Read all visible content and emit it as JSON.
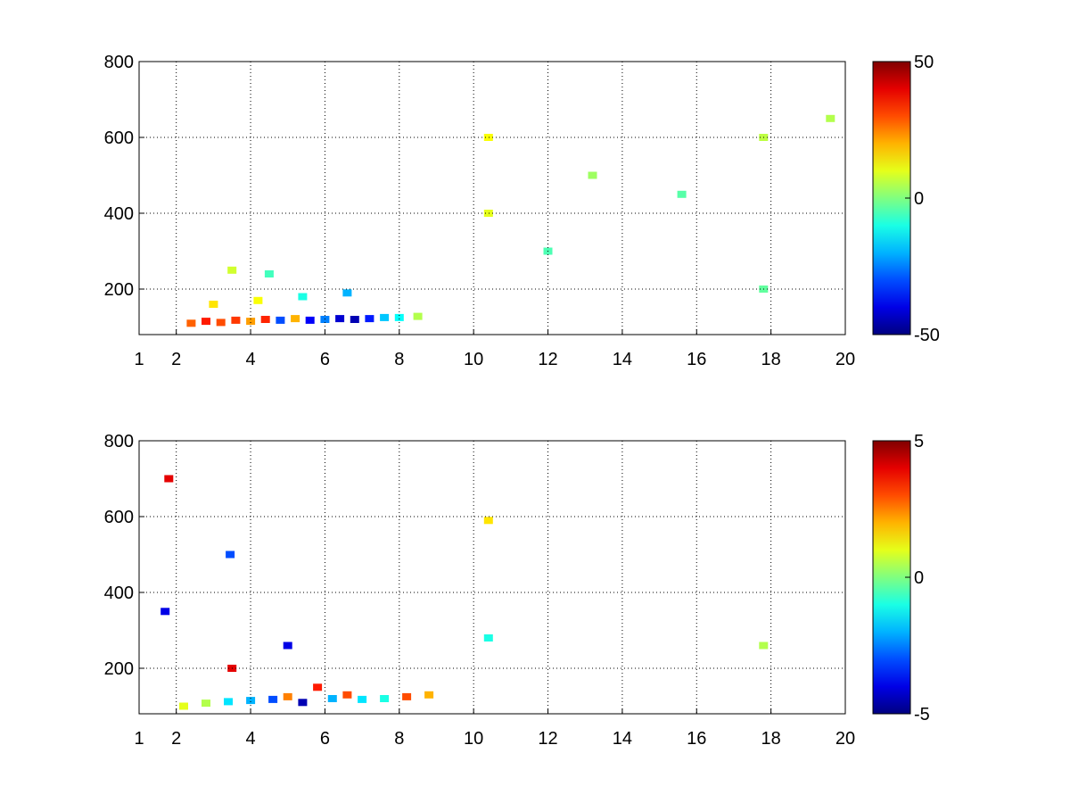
{
  "chart_data": [
    {
      "type": "heatmap",
      "x_ticks": [
        1,
        2,
        4,
        6,
        8,
        10,
        12,
        14,
        16,
        18,
        20
      ],
      "y_ticks": [
        200,
        400,
        600,
        800
      ],
      "xlim": [
        1,
        20
      ],
      "ylim": [
        80,
        800
      ],
      "grid": true,
      "colormap": "jet",
      "colorbar": {
        "ticks": [
          50,
          0,
          -50
        ],
        "range": [
          -50,
          50
        ]
      },
      "points": [
        {
          "x": 2.4,
          "y": 110,
          "v": 28
        },
        {
          "x": 2.8,
          "y": 115,
          "v": 35
        },
        {
          "x": 3.2,
          "y": 112,
          "v": 30
        },
        {
          "x": 3.6,
          "y": 118,
          "v": 32
        },
        {
          "x": 4.0,
          "y": 115,
          "v": 22
        },
        {
          "x": 4.4,
          "y": 120,
          "v": 34
        },
        {
          "x": 4.8,
          "y": 118,
          "v": -30
        },
        {
          "x": 5.2,
          "y": 122,
          "v": 20
        },
        {
          "x": 5.6,
          "y": 118,
          "v": -38
        },
        {
          "x": 6.0,
          "y": 120,
          "v": -25
        },
        {
          "x": 6.4,
          "y": 122,
          "v": -42
        },
        {
          "x": 6.8,
          "y": 120,
          "v": -45
        },
        {
          "x": 7.2,
          "y": 122,
          "v": -35
        },
        {
          "x": 7.6,
          "y": 125,
          "v": -18
        },
        {
          "x": 8.0,
          "y": 125,
          "v": -12
        },
        {
          "x": 8.5,
          "y": 128,
          "v": 5
        },
        {
          "x": 3.0,
          "y": 160,
          "v": 15
        },
        {
          "x": 4.2,
          "y": 170,
          "v": 12
        },
        {
          "x": 5.4,
          "y": 180,
          "v": -10
        },
        {
          "x": 6.6,
          "y": 190,
          "v": -20
        },
        {
          "x": 3.5,
          "y": 250,
          "v": 8
        },
        {
          "x": 4.5,
          "y": 240,
          "v": -6
        },
        {
          "x": 10.4,
          "y": 400,
          "v": 10
        },
        {
          "x": 10.4,
          "y": 600,
          "v": 12
        },
        {
          "x": 12.0,
          "y": 300,
          "v": -5
        },
        {
          "x": 13.2,
          "y": 500,
          "v": 3
        },
        {
          "x": 15.6,
          "y": 450,
          "v": -4
        },
        {
          "x": 17.8,
          "y": 600,
          "v": 6
        },
        {
          "x": 17.8,
          "y": 200,
          "v": -3
        },
        {
          "x": 19.6,
          "y": 650,
          "v": 5
        }
      ]
    },
    {
      "type": "heatmap",
      "x_ticks": [
        1,
        2,
        4,
        6,
        8,
        10,
        12,
        14,
        16,
        18,
        20
      ],
      "y_ticks": [
        200,
        400,
        600,
        800
      ],
      "xlim": [
        1,
        20
      ],
      "ylim": [
        80,
        800
      ],
      "grid": true,
      "colormap": "jet",
      "colorbar": {
        "ticks": [
          5,
          0,
          -5
        ],
        "range": [
          -5,
          5
        ]
      },
      "points": [
        {
          "x": 2.2,
          "y": 100,
          "v": 1
        },
        {
          "x": 2.8,
          "y": 108,
          "v": 0.5
        },
        {
          "x": 3.4,
          "y": 112,
          "v": -1.5
        },
        {
          "x": 4.0,
          "y": 115,
          "v": -2
        },
        {
          "x": 4.6,
          "y": 118,
          "v": -3
        },
        {
          "x": 5.0,
          "y": 125,
          "v": 2.5
        },
        {
          "x": 5.4,
          "y": 110,
          "v": -4.5
        },
        {
          "x": 5.8,
          "y": 150,
          "v": 3.5
        },
        {
          "x": 6.2,
          "y": 120,
          "v": -2
        },
        {
          "x": 6.6,
          "y": 130,
          "v": 3
        },
        {
          "x": 7.0,
          "y": 118,
          "v": -1.5
        },
        {
          "x": 7.6,
          "y": 120,
          "v": -1
        },
        {
          "x": 8.2,
          "y": 125,
          "v": 3
        },
        {
          "x": 8.8,
          "y": 130,
          "v": 2
        },
        {
          "x": 3.5,
          "y": 200,
          "v": 4
        },
        {
          "x": 3.45,
          "y": 500,
          "v": -3
        },
        {
          "x": 1.8,
          "y": 700,
          "v": 4
        },
        {
          "x": 1.7,
          "y": 350,
          "v": -4
        },
        {
          "x": 5.0,
          "y": 260,
          "v": -4
        },
        {
          "x": 10.4,
          "y": 280,
          "v": -1
        },
        {
          "x": 10.4,
          "y": 590,
          "v": 1.5
        },
        {
          "x": 17.8,
          "y": 260,
          "v": 0.5
        }
      ]
    }
  ]
}
